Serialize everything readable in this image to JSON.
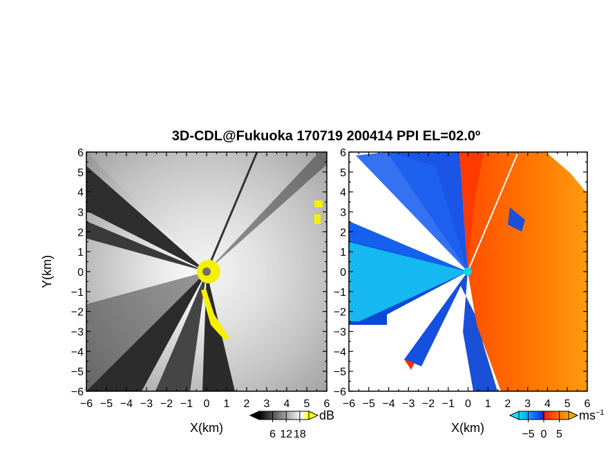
{
  "chart_data": [
    {
      "type": "heatmap",
      "title": "3D-CDL@Fukuoka 170719 200414 PPI EL=02.0º",
      "panel": "left",
      "field": "signal intensity",
      "xlabel": "X(km)",
      "ylabel": "Y(km)",
      "xlim": [
        -6,
        6
      ],
      "ylim": [
        -6,
        6
      ],
      "xticks": [
        "−6",
        "−5",
        "−4",
        "−3",
        "−2",
        "−1",
        "0",
        "1",
        "2",
        "3",
        "4",
        "5",
        "6"
      ],
      "yticks": [
        "6",
        "5",
        "4",
        "3",
        "2",
        "1",
        "0",
        "−1",
        "−2",
        "−3",
        "−4",
        "−5",
        "−6"
      ],
      "colorbar": {
        "unit": "dB",
        "ticks": [
          "6",
          "12",
          "18"
        ],
        "range": [
          0,
          22
        ],
        "colors": [
          "#000000",
          "#ffffff",
          "#ffff00"
        ]
      }
    },
    {
      "type": "heatmap",
      "panel": "right",
      "field": "Doppler velocity",
      "xlabel": "X(km)",
      "ylabel": "",
      "xlim": [
        -6,
        6
      ],
      "ylim": [
        -6,
        6
      ],
      "xticks": [
        "−6",
        "−5",
        "−4",
        "−3",
        "−2",
        "−1",
        "0",
        "1",
        "2",
        "3",
        "4",
        "5",
        "6"
      ],
      "yticks": [
        "6",
        "5",
        "4",
        "3",
        "2",
        "1",
        "0",
        "−1",
        "−2",
        "−3",
        "−4",
        "−5",
        "−6"
      ],
      "colorbar": {
        "unit": "ms",
        "unit_exponent": "−1",
        "ticks": [
          "−5",
          "0",
          "5"
        ],
        "range": [
          -8,
          8
        ],
        "colors": [
          "#00e5ff",
          "#0a3fd8",
          "#ff2a00",
          "#ffa500"
        ]
      }
    }
  ]
}
